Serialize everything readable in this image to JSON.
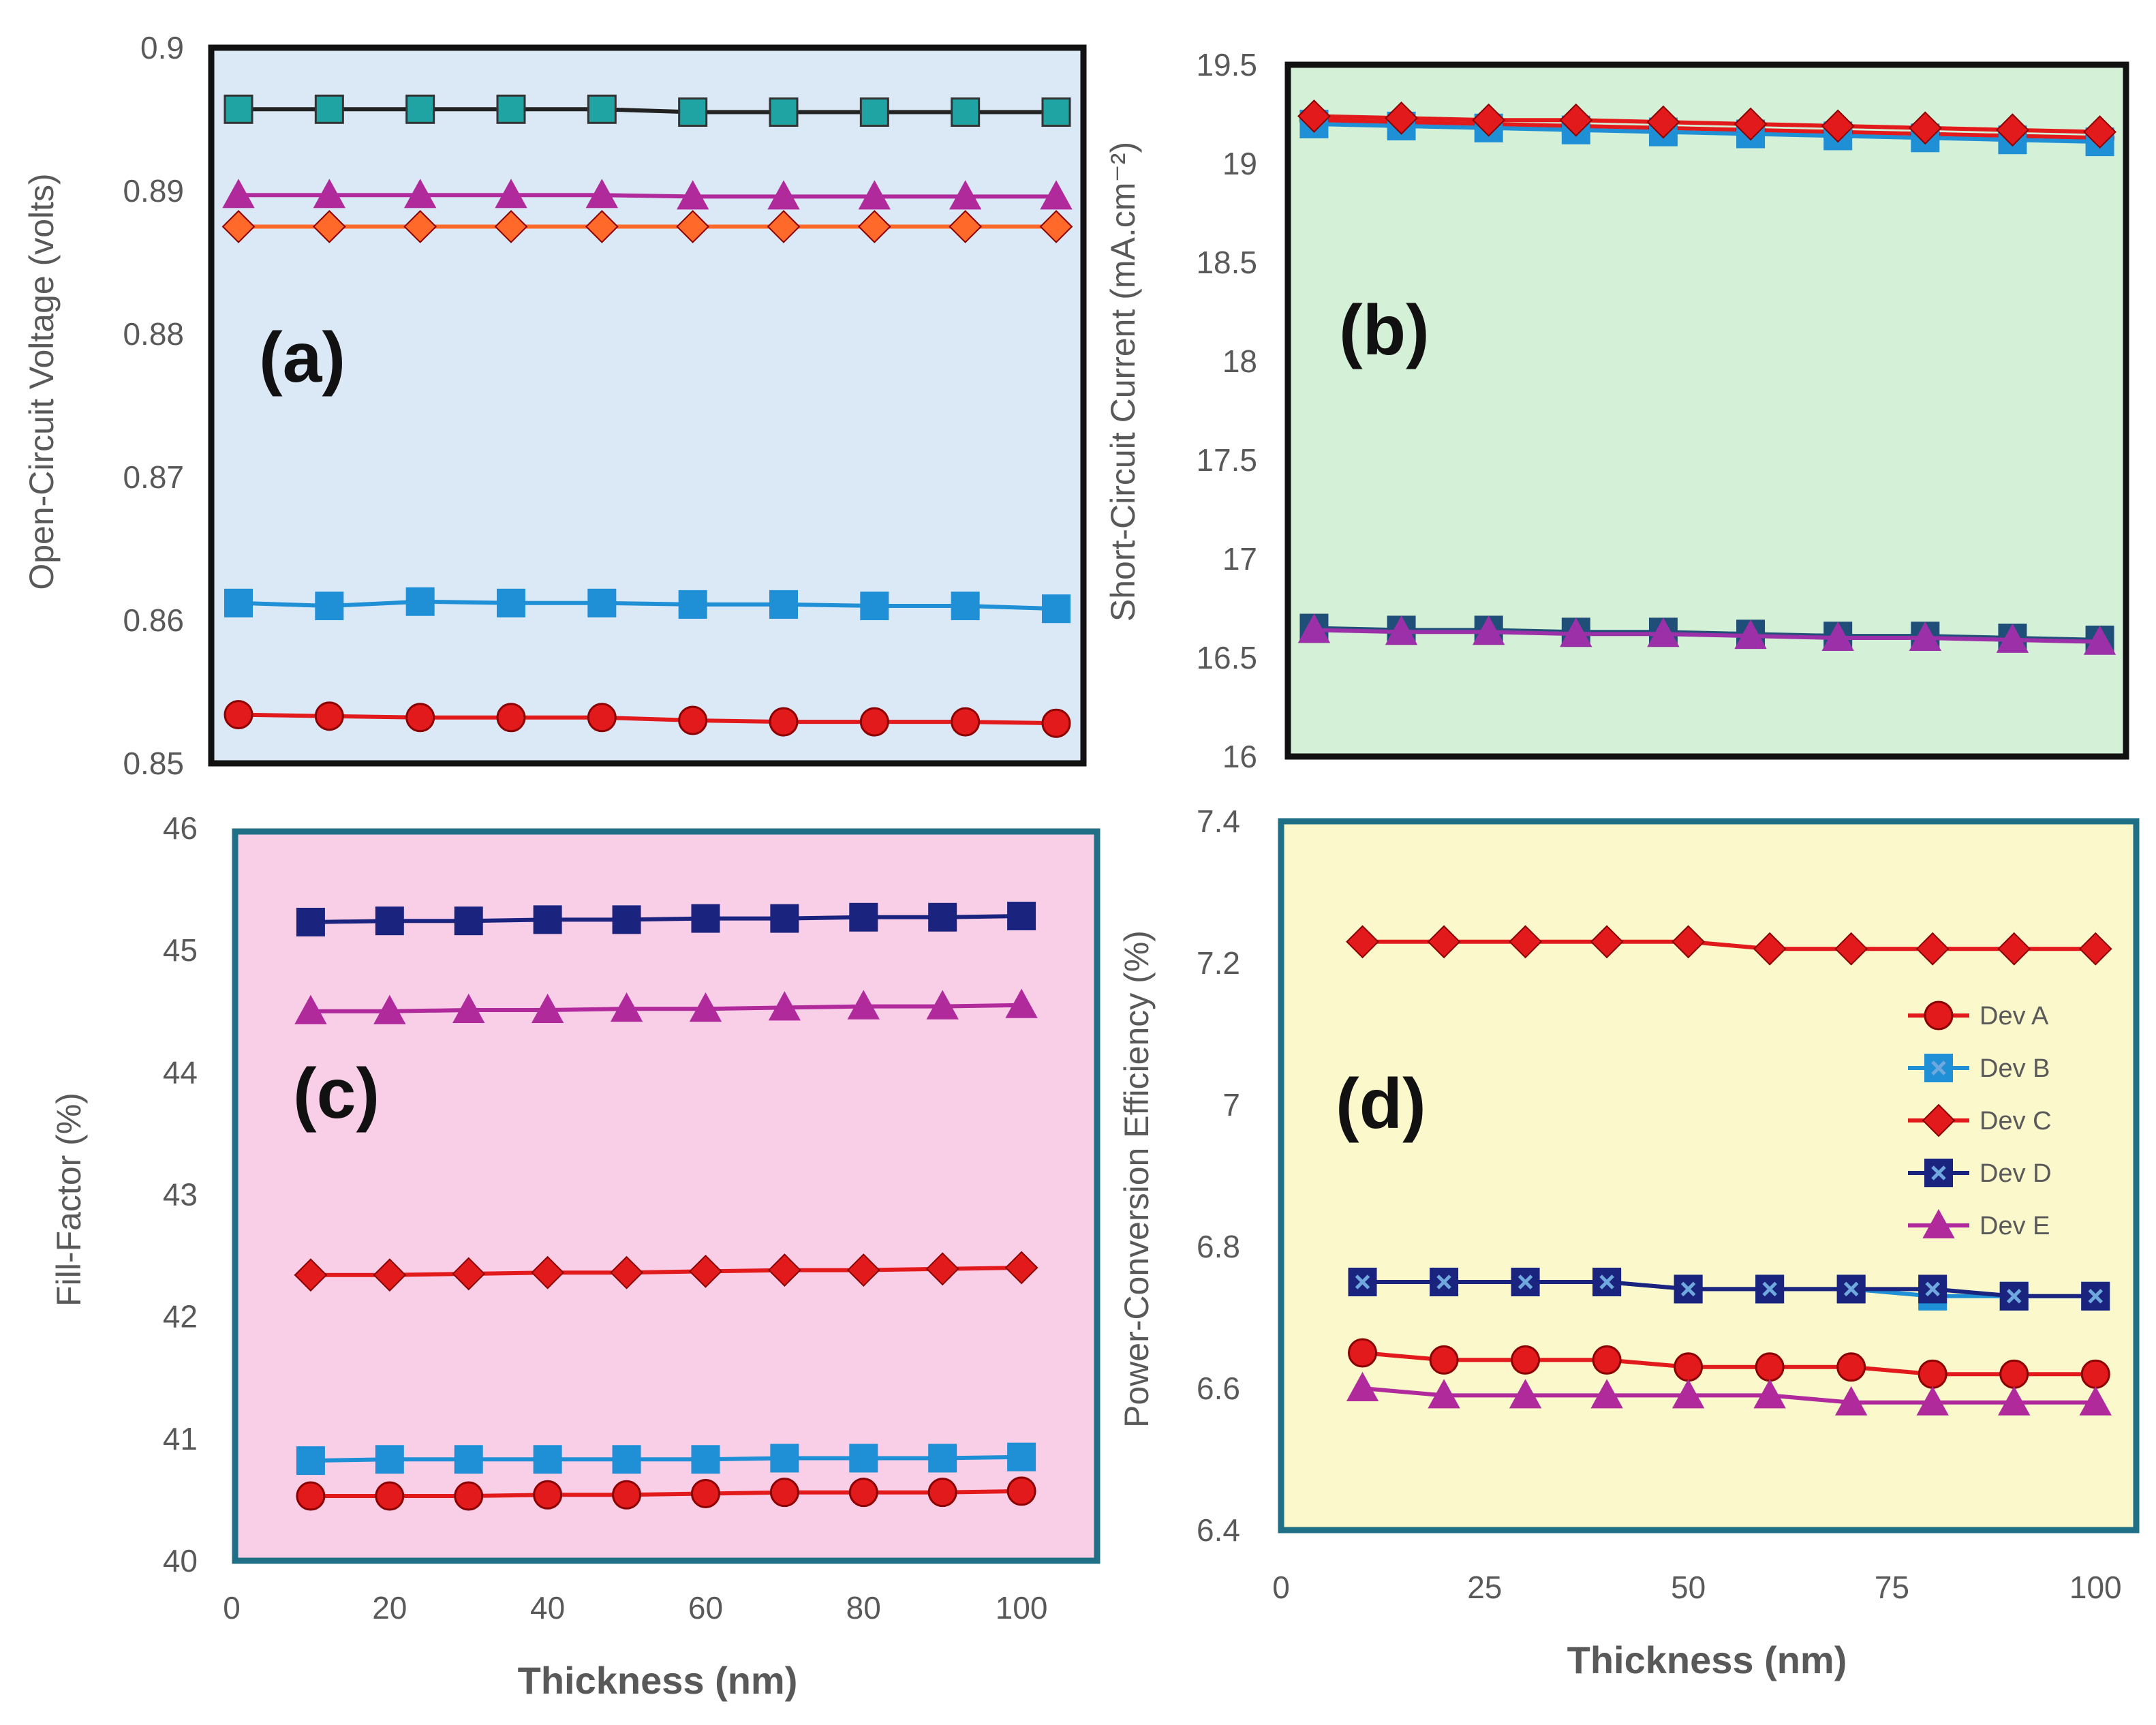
{
  "chart_data": [
    {
      "id": "a",
      "type": "line",
      "panel_label": "(a)",
      "ylabel": "Open-Circuit Voltage (volts)",
      "xlabel": "",
      "bg": "#dbe9f7",
      "border": "#111111",
      "xlim": [
        7,
        103
      ],
      "ylim": [
        0.85,
        0.9
      ],
      "yticks": [
        "0.85",
        "0.86",
        "0.87",
        "0.88",
        "0.89",
        "0.9"
      ],
      "ytick_values": [
        0.85,
        0.86,
        0.87,
        0.88,
        0.89,
        0.9
      ],
      "xticks": [],
      "x": [
        10,
        20,
        30,
        40,
        50,
        60,
        70,
        80,
        90,
        100
      ],
      "series": [
        {
          "name": "Dev A",
          "color": "#e31a1c",
          "marker": "circle",
          "values": [
            0.8534,
            0.8533,
            0.8532,
            0.8532,
            0.8532,
            0.853,
            0.8529,
            0.8529,
            0.8529,
            0.8528
          ]
        },
        {
          "name": "Dev B",
          "color": "#1f8fd6",
          "marker": "square",
          "values": [
            0.8612,
            0.861,
            0.8613,
            0.8612,
            0.8612,
            0.8611,
            0.8611,
            0.861,
            0.861,
            0.8608
          ]
        },
        {
          "name": "Dev C",
          "color": "#ff6a2a",
          "marker": "diamond",
          "values": [
            0.8875,
            0.8875,
            0.8875,
            0.8875,
            0.8875,
            0.8875,
            0.8875,
            0.8875,
            0.8875,
            0.8875
          ]
        },
        {
          "name": "Dev D",
          "color": "#222222",
          "marker": "square-teal",
          "values": [
            0.8957,
            0.8957,
            0.8957,
            0.8957,
            0.8957,
            0.8955,
            0.8955,
            0.8955,
            0.8955,
            0.8955
          ]
        },
        {
          "name": "Dev E",
          "color": "#b02a9c",
          "marker": "triangle",
          "values": [
            0.8897,
            0.8897,
            0.8897,
            0.8897,
            0.8897,
            0.8896,
            0.8896,
            0.8896,
            0.8896,
            0.8896
          ]
        }
      ]
    },
    {
      "id": "b",
      "type": "line",
      "panel_label": "(b)",
      "ylabel": "Short-Circuit Current (mA.cm⁻²)",
      "xlabel": "",
      "bg": "#d4f0d6",
      "border": "#111111",
      "xlim": [
        7,
        103
      ],
      "ylim": [
        16,
        19.5
      ],
      "yticks": [
        "16",
        "16.5",
        "17",
        "17.5",
        "18",
        "18.5",
        "19",
        "19.5"
      ],
      "ytick_values": [
        16,
        16.5,
        17,
        17.5,
        18,
        18.5,
        19,
        19.5
      ],
      "xticks": [],
      "x": [
        10,
        20,
        30,
        40,
        50,
        60,
        70,
        80,
        90,
        100
      ],
      "series": [
        {
          "name": "Dev A",
          "color": "#e31a1c",
          "marker": "circle",
          "values": [
            19.22,
            19.21,
            19.2,
            19.19,
            19.18,
            19.17,
            19.16,
            19.15,
            19.14,
            19.13
          ]
        },
        {
          "name": "Dev B",
          "color": "#1f8fd6",
          "marker": "square",
          "values": [
            19.2,
            19.19,
            19.18,
            19.17,
            19.16,
            19.15,
            19.14,
            19.13,
            19.12,
            19.11
          ]
        },
        {
          "name": "Dev C",
          "color": "#e31a1c",
          "marker": "diamond",
          "values": [
            19.24,
            19.23,
            19.22,
            19.22,
            19.21,
            19.2,
            19.19,
            19.18,
            19.17,
            19.16
          ]
        },
        {
          "name": "Dev D",
          "color": "#1f4e79",
          "marker": "square",
          "values": [
            16.65,
            16.64,
            16.64,
            16.63,
            16.63,
            16.62,
            16.61,
            16.61,
            16.6,
            16.59
          ]
        },
        {
          "name": "Dev E",
          "color": "#9b30a8",
          "marker": "triangle",
          "values": [
            16.64,
            16.63,
            16.63,
            16.62,
            16.62,
            16.61,
            16.6,
            16.6,
            16.59,
            16.58
          ]
        }
      ]
    },
    {
      "id": "c",
      "type": "line",
      "panel_label": "(c)",
      "ylabel": "Fill-Factor (%)",
      "xlabel": "Thickness (nm)",
      "bg": "#f9cfe8",
      "border": "#1f6f86",
      "xlim": [
        0,
        110
      ],
      "ylim": [
        40,
        46
      ],
      "yticks": [
        "40",
        "41",
        "42",
        "43",
        "44",
        "45",
        "46"
      ],
      "ytick_values": [
        40,
        41,
        42,
        43,
        44,
        45,
        46
      ],
      "xticks": [
        "0",
        "20",
        "40",
        "60",
        "80",
        "100"
      ],
      "xtick_values": [
        0,
        20,
        40,
        60,
        80,
        100
      ],
      "x": [
        10,
        20,
        30,
        40,
        50,
        60,
        70,
        80,
        90,
        100
      ],
      "series": [
        {
          "name": "Dev A",
          "color": "#e31a1c",
          "marker": "circle",
          "values": [
            40.53,
            40.53,
            40.53,
            40.54,
            40.54,
            40.55,
            40.56,
            40.56,
            40.56,
            40.57
          ]
        },
        {
          "name": "Dev B",
          "color": "#1f8fd6",
          "marker": "square",
          "values": [
            40.82,
            40.83,
            40.83,
            40.83,
            40.83,
            40.83,
            40.84,
            40.84,
            40.84,
            40.85
          ]
        },
        {
          "name": "Dev C",
          "color": "#e31a1c",
          "marker": "diamond",
          "values": [
            42.34,
            42.34,
            42.35,
            42.36,
            42.36,
            42.37,
            42.38,
            42.38,
            42.39,
            42.4
          ]
        },
        {
          "name": "Dev D",
          "color": "#1a237e",
          "marker": "square",
          "values": [
            45.23,
            45.24,
            45.24,
            45.25,
            45.25,
            45.26,
            45.26,
            45.27,
            45.27,
            45.28
          ]
        },
        {
          "name": "Dev E",
          "color": "#b02a9c",
          "marker": "triangle",
          "values": [
            44.5,
            44.5,
            44.51,
            44.51,
            44.52,
            44.52,
            44.53,
            44.54,
            44.54,
            44.55
          ]
        }
      ]
    },
    {
      "id": "d",
      "type": "line",
      "panel_label": "(d)",
      "ylabel": "Power-Conversion Efficiency (%)",
      "xlabel": "Thickness (nm)",
      "bg": "#fbf8cc",
      "border": "#1f6f86",
      "xlim": [
        0,
        105
      ],
      "ylim": [
        6.4,
        7.4
      ],
      "yticks": [
        "6.4",
        "6.6",
        "6.8",
        "7",
        "7.2",
        "7.4"
      ],
      "ytick_values": [
        6.4,
        6.6,
        6.8,
        7.0,
        7.2,
        7.4
      ],
      "xticks": [
        "0",
        "25",
        "50",
        "75",
        "100"
      ],
      "xtick_values": [
        0,
        25,
        50,
        75,
        100
      ],
      "x": [
        10,
        20,
        30,
        40,
        50,
        60,
        70,
        80,
        90,
        100
      ],
      "series": [
        {
          "name": "Dev A",
          "color": "#e31a1c",
          "marker": "circle",
          "values": [
            6.65,
            6.64,
            6.64,
            6.64,
            6.63,
            6.63,
            6.63,
            6.62,
            6.62,
            6.62
          ]
        },
        {
          "name": "Dev B",
          "color": "#1f8fd6",
          "marker": "square-x",
          "values": [
            6.75,
            6.75,
            6.75,
            6.75,
            6.74,
            6.74,
            6.74,
            6.73,
            6.73,
            6.73
          ]
        },
        {
          "name": "Dev C",
          "color": "#e31a1c",
          "marker": "diamond",
          "values": [
            7.23,
            7.23,
            7.23,
            7.23,
            7.23,
            7.22,
            7.22,
            7.22,
            7.22,
            7.22
          ]
        },
        {
          "name": "Dev D",
          "color": "#1a237e",
          "marker": "square-x",
          "values": [
            6.75,
            6.75,
            6.75,
            6.75,
            6.74,
            6.74,
            6.74,
            6.74,
            6.73,
            6.73
          ]
        },
        {
          "name": "Dev E",
          "color": "#b02a9c",
          "marker": "triangle",
          "values": [
            6.6,
            6.59,
            6.59,
            6.59,
            6.59,
            6.59,
            6.58,
            6.58,
            6.58,
            6.58
          ]
        }
      ],
      "legend": {
        "position": "right",
        "entries": [
          {
            "label": "Dev A",
            "color": "#e31a1c",
            "marker": "circle"
          },
          {
            "label": "Dev B",
            "color": "#1f8fd6",
            "marker": "square-x"
          },
          {
            "label": "Dev C",
            "color": "#e31a1c",
            "marker": "diamond"
          },
          {
            "label": "Dev D",
            "color": "#1a237e",
            "marker": "square-x"
          },
          {
            "label": "Dev E",
            "color": "#b02a9c",
            "marker": "triangle"
          }
        ]
      }
    }
  ]
}
